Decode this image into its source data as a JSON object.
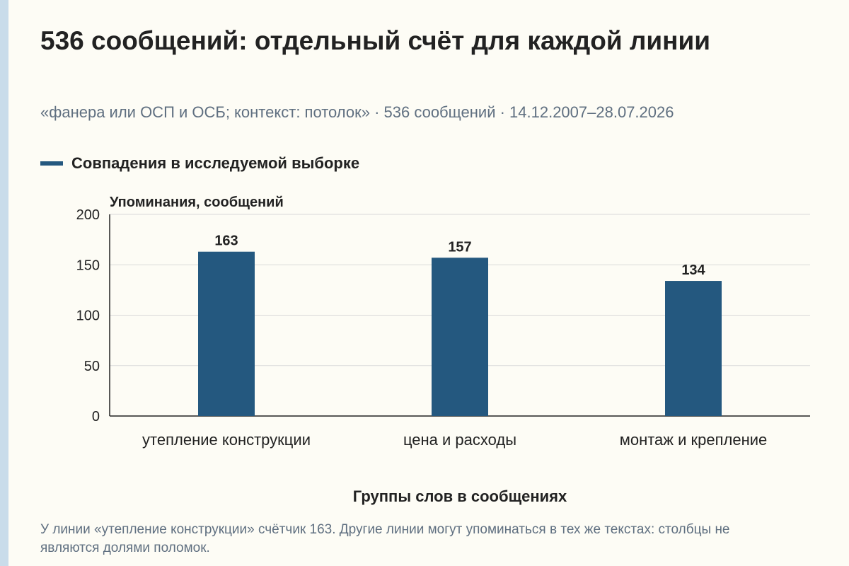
{
  "title": "536 сообщений: отдельный счёт для каждой линии",
  "subtitle": "«фанера или ОСП и ОСБ; контекст: потолок» · 536 сообщений · 14.12.2007–28.07.2026",
  "footnote": "У линии «утепление конструкции» счётчик 163. Другие линии могут упоминаться в тех же текстах: столбцы не являются долями поломок.",
  "colors": {
    "bar": "#24587f",
    "grid": "#d9d9d9",
    "axis": "#222222"
  },
  "chart_data": {
    "type": "bar",
    "categories": [
      "утепление конструкции",
      "цена и расходы",
      "монтаж и крепление"
    ],
    "series": [
      {
        "name": "Совпадения в исследуемой выборке",
        "values": [
          163,
          157,
          134
        ]
      }
    ],
    "data_labels": [
      "163",
      "157",
      "134"
    ],
    "ylabel": "Упоминания, сообщений",
    "xlabel": "Группы слов в сообщениях",
    "ylim": [
      0,
      200
    ],
    "yticks": [
      0,
      50,
      100,
      150,
      200
    ],
    "grid": true,
    "legend": "top-left"
  }
}
